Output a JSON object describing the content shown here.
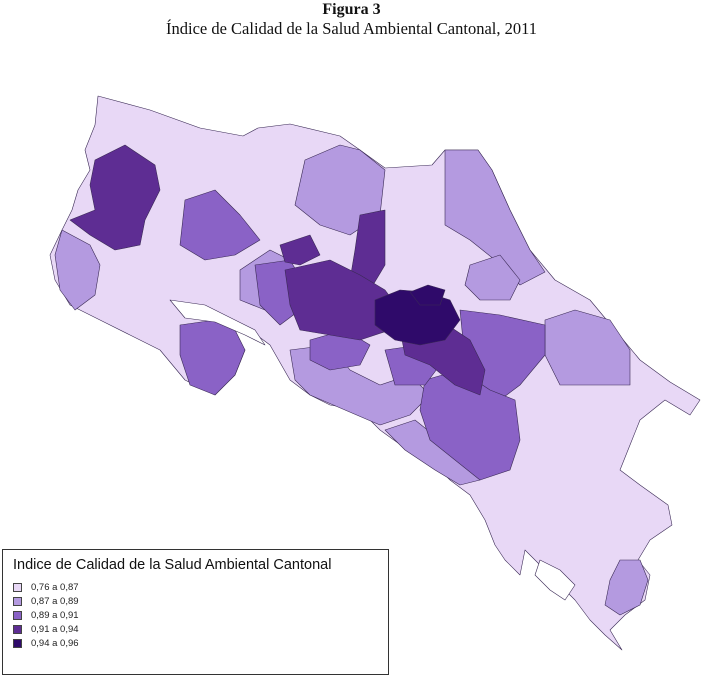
{
  "figure": {
    "number": "Figura 3",
    "title": "Índice de Calidad de la Salud Ambiental Cantonal, 2011"
  },
  "legend": {
    "title": "Indice de Calidad de la Salud Ambiental Cantonal",
    "items": [
      {
        "label": "0,76  a  0,87",
        "color": "#e8d8f6"
      },
      {
        "label": "0,87  a   0,89",
        "color": "#b49ae0"
      },
      {
        "label": "0,89  a   0,91",
        "color": "#8a62c6"
      },
      {
        "label": "0,91  a   0,94",
        "color": "#5e2d93"
      },
      {
        "label": "0,94  a   0,96",
        "color": "#2f0a6a"
      }
    ]
  }
}
